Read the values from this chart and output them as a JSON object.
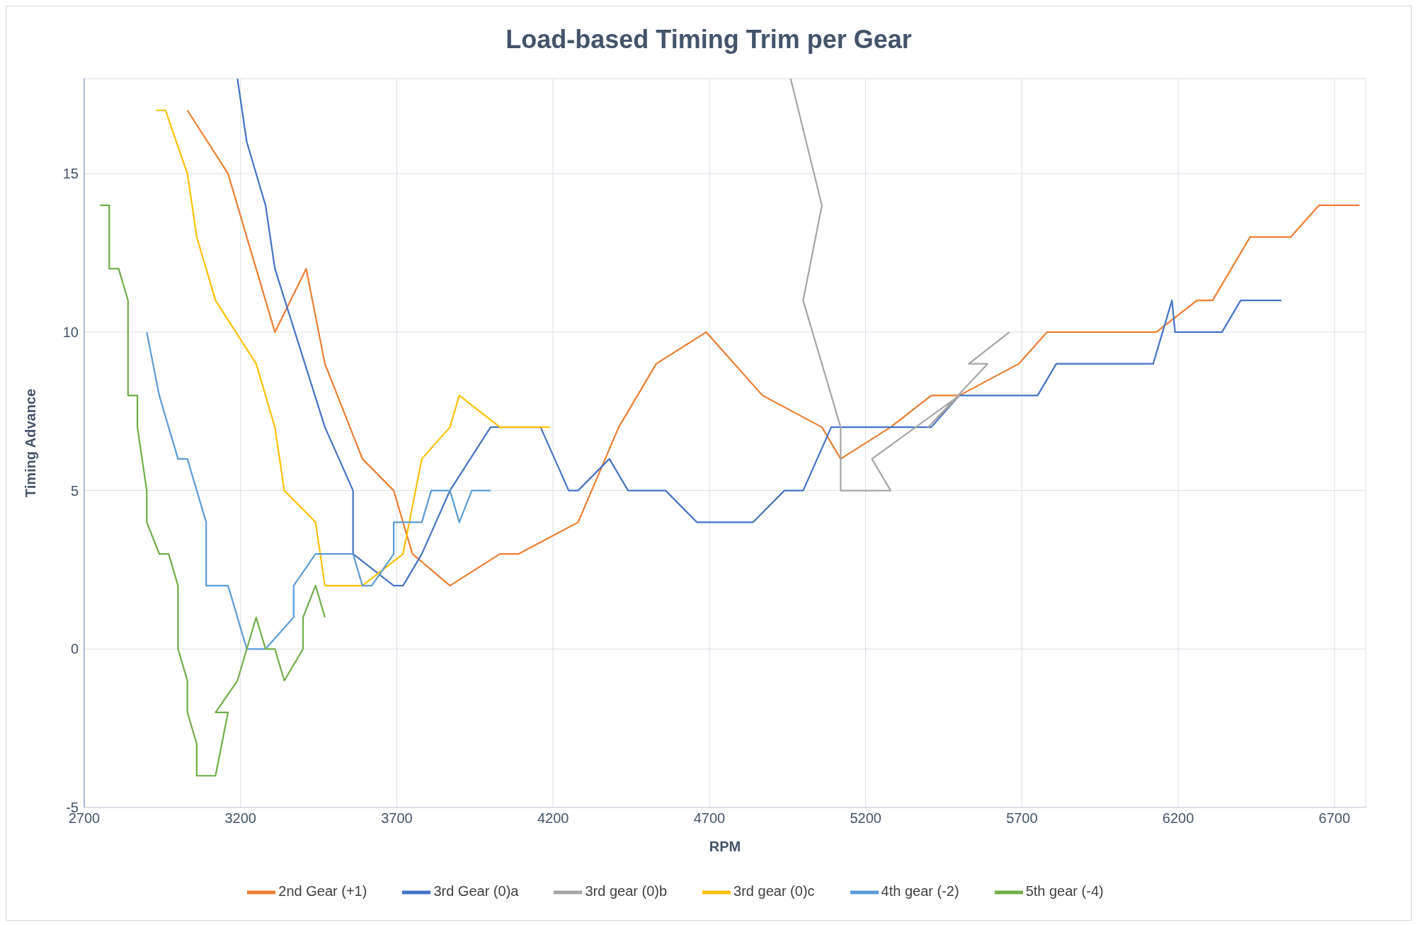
{
  "chart_data": {
    "type": "line",
    "title": "Load-based Timing Trim per Gear",
    "xlabel": "RPM",
    "ylabel": "Timing Advance",
    "xlim": [
      2700,
      6800
    ],
    "xticks": [
      2700,
      3200,
      3700,
      4200,
      4700,
      5200,
      5700,
      6200,
      6700
    ],
    "ylim": [
      -5,
      18
    ],
    "yticks": [
      -5,
      0,
      5,
      10,
      15
    ],
    "grid": true,
    "legend": "bottom",
    "marker": "none",
    "line_style": "solid",
    "series": [
      {
        "name": "2nd Gear (+1)",
        "color": "#ed7d31",
        "x": [
          3030,
          3160,
          3310,
          3410,
          3470,
          3590,
          3690,
          3750,
          3870,
          4030,
          4090,
          4280,
          4410,
          4530,
          4690,
          4870,
          5060,
          5120,
          5280,
          5410,
          5500,
          5690,
          5780,
          6130,
          6260,
          6310,
          6430,
          6560,
          6650,
          6780
        ],
        "values": [
          17,
          15,
          10,
          12,
          9,
          6,
          5,
          3,
          2,
          3,
          3,
          4,
          7,
          9,
          10,
          8,
          7,
          6,
          7,
          8,
          8,
          9,
          10,
          10,
          11,
          11,
          13,
          13,
          14,
          14
        ]
      },
      {
        "name": "3rd Gear (0)a",
        "color": "#4472c4",
        "x": [
          3190,
          3220,
          3280,
          3310,
          3470,
          3560,
          3560,
          3690,
          3720,
          3780,
          3870,
          4000,
          4160,
          4250,
          4280,
          4380,
          4440,
          4560,
          4660,
          4840,
          4940,
          5000,
          5090,
          5410,
          5500,
          5750,
          5810,
          6120,
          6180,
          6190,
          6340,
          6400,
          6530
        ],
        "values": [
          18,
          16,
          14,
          12,
          7,
          5,
          3,
          2,
          2,
          3,
          5,
          7,
          7,
          5,
          5,
          6,
          5,
          5,
          4,
          4,
          5,
          5,
          7,
          7,
          8,
          8,
          9,
          9,
          11,
          10,
          10,
          11,
          11
        ]
      },
      {
        "name": "3rd gear (0)b",
        "color": "#a5a5a5",
        "x": [
          4960,
          5060,
          5000,
          5120,
          5120,
          5280,
          5220,
          5500,
          5400,
          5590,
          5530,
          5660
        ],
        "values": [
          18,
          14,
          11,
          7,
          5,
          5,
          6,
          8,
          7,
          9,
          9,
          10
        ]
      },
      {
        "name": "3rd gear (0)c",
        "color": "#ffc000",
        "x": [
          2930,
          2960,
          3030,
          3060,
          3120,
          3250,
          3310,
          3340,
          3440,
          3470,
          3590,
          3720,
          3780,
          3870,
          3900,
          4030,
          4190
        ],
        "values": [
          17,
          17,
          15,
          13,
          11,
          9,
          7,
          5,
          4,
          2,
          2,
          3,
          6,
          7,
          8,
          7,
          7
        ]
      },
      {
        "name": "4th gear (-2)",
        "color": "#5b9bd5",
        "x": [
          2900,
          2940,
          3000,
          3030,
          3090,
          3090,
          3160,
          3220,
          3280,
          3370,
          3370,
          3440,
          3560,
          3590,
          3620,
          3690,
          3690,
          3780,
          3810,
          3870,
          3900,
          3940,
          4000
        ],
        "values": [
          10,
          8,
          6,
          6,
          4,
          2,
          2,
          0,
          0,
          1,
          2,
          3,
          3,
          2,
          2,
          3,
          4,
          4,
          5,
          5,
          4,
          5,
          5
        ]
      },
      {
        "name": "5th gear (-4)",
        "color": "#70ad47",
        "x": [
          2750,
          2780,
          2780,
          2810,
          2840,
          2840,
          2870,
          2870,
          2900,
          2900,
          2940,
          2970,
          3000,
          3000,
          3030,
          3030,
          3060,
          3060,
          3120,
          3160,
          3120,
          3190,
          3220,
          3250,
          3280,
          3310,
          3340,
          3400,
          3400,
          3440,
          3470
        ],
        "values": [
          14,
          14,
          12,
          12,
          11,
          8,
          8,
          7,
          5,
          4,
          3,
          3,
          2,
          0,
          -1,
          -2,
          -3,
          -4,
          -4,
          -2,
          -2,
          -1,
          0,
          1,
          0,
          0,
          -1,
          0,
          1,
          2,
          1
        ]
      }
    ]
  }
}
